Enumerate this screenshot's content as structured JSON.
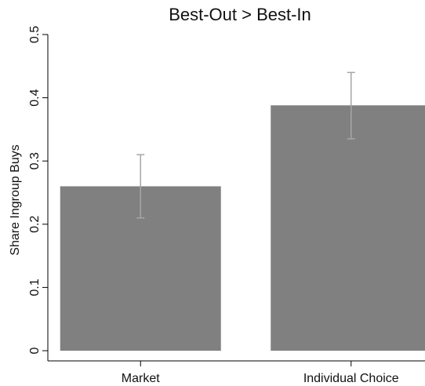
{
  "chart_data": {
    "type": "bar",
    "title": "Best-Out > Best-In",
    "xlabel": "",
    "ylabel": "Share Ingroup Buys",
    "categories": [
      "Market",
      "Individual Choice"
    ],
    "values": [
      0.26,
      0.388
    ],
    "error_low": [
      0.21,
      0.335
    ],
    "error_high": [
      0.31,
      0.44
    ],
    "ylim": [
      0,
      0.5
    ],
    "yticks": [
      0,
      0.1,
      0.2,
      0.3,
      0.4,
      0.5
    ],
    "ytick_labels": [
      "0",
      "0.1",
      "0.2",
      "0.3",
      "0.4",
      "0.5"
    ],
    "grid": false,
    "bar_color": "#808080",
    "error_color": "#a6a6a6"
  }
}
